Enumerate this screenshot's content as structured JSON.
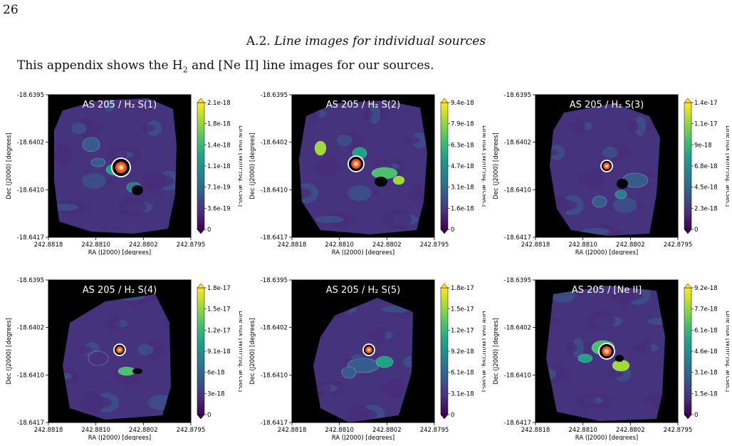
{
  "page_number": "26",
  "section": {
    "number": "A.2.",
    "title": "Line images for individual sources"
  },
  "intro": {
    "before": "This appendix shows the H",
    "sub": "2",
    "after": " and [Ne II] line images for our sources."
  },
  "axes": {
    "xlabel": "RA (J2000) [degrees]",
    "ylabel": "Dec (J2000) [degrees]",
    "xticks": [
      "242.8818",
      "242.8810",
      "242.8802",
      "242.8795"
    ],
    "yticks": [
      "-18.6395",
      "-18.6402",
      "-18.6410",
      "-18.6417"
    ],
    "cbar_label": "Line flux [W/m²/sq. arcsec]"
  },
  "chart_data": [
    {
      "type": "heatmap",
      "title": "AS 205 / H₂ S(1)",
      "colorbar_ticks": [
        "2.1e-18",
        "1.8e-18",
        "1.4e-18",
        "1.1e-18",
        "7.1e-19",
        "3.6e-19",
        "0"
      ],
      "colormap": "viridis"
    },
    {
      "type": "heatmap",
      "title": "AS 205 / H₂ S(2)",
      "colorbar_ticks": [
        "9.4e-18",
        "7.9e-18",
        "6.3e-18",
        "4.7e-18",
        "3.1e-18",
        "1.6e-18",
        "0"
      ],
      "colormap": "viridis"
    },
    {
      "type": "heatmap",
      "title": "AS 205 / H₂ S(3)",
      "colorbar_ticks": [
        "1.4e-17",
        "1.1e-17",
        "9e-18",
        "6.8e-18",
        "4.5e-18",
        "2.3e-18",
        "0"
      ],
      "colormap": "viridis"
    },
    {
      "type": "heatmap",
      "title": "AS 205 / H₂ S(4)",
      "colorbar_ticks": [
        "1.8e-17",
        "1.5e-17",
        "1.2e-17",
        "9.1e-18",
        "6e-18",
        "3e-18",
        "0"
      ],
      "colormap": "viridis"
    },
    {
      "type": "heatmap",
      "title": "AS 205 / H₂ S(5)",
      "colorbar_ticks": [
        "1.8e-17",
        "1.5e-17",
        "1.2e-17",
        "9.2e-18",
        "6.1e-18",
        "3.1e-18",
        "0"
      ],
      "colormap": "viridis"
    },
    {
      "type": "heatmap",
      "title": "AS 205 / [Ne II]",
      "colorbar_ticks": [
        "9.2e-18",
        "7.7e-18",
        "6.1e-18",
        "4.6e-18",
        "3.1e-18",
        "1.5e-18",
        "0"
      ],
      "colormap": "viridis"
    }
  ]
}
